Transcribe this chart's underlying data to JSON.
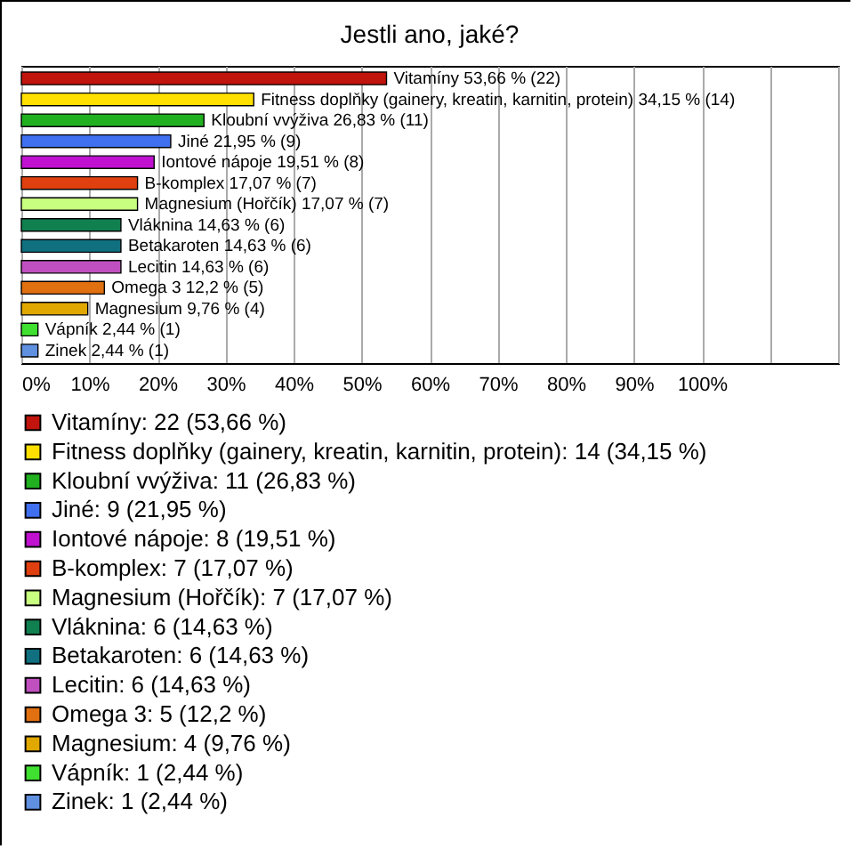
{
  "chart_data": {
    "type": "bar",
    "orientation": "horizontal",
    "stacked": true,
    "title": "Jestli ano, jaké?",
    "categories": [
      null,
      null,
      null,
      null,
      null,
      null,
      null,
      null,
      null,
      null,
      null,
      null,
      null,
      null
    ],
    "series": [
      {
        "name": "Vitamíny: 22 (53,66 %)",
        "color": "#c0140c",
        "values": [
          53.66,
          null,
          null,
          null,
          null,
          null,
          null,
          null,
          null,
          null,
          null,
          null,
          null,
          null
        ],
        "value_labels": [
          "Vitamíny 53,66 % (22)",
          null,
          null,
          null,
          null,
          null,
          null,
          null,
          null,
          null,
          null,
          null,
          null,
          null
        ]
      },
      {
        "name": "Fitness doplňky (gainery, kreatin, karnitin, protein): 14 (34,15 %)",
        "color": "#ffe000",
        "values": [
          null,
          34.15,
          null,
          null,
          null,
          null,
          null,
          null,
          null,
          null,
          null,
          null,
          null,
          null
        ],
        "value_labels": [
          null,
          "Fitness doplňky (gainery, kreatin, karnitin, protein) 34,15 % (14)",
          null,
          null,
          null,
          null,
          null,
          null,
          null,
          null,
          null,
          null,
          null,
          null
        ]
      },
      {
        "name": "Kloubní vvýživa: 11 (26,83 %)",
        "color": "#20b020",
        "values": [
          null,
          null,
          26.83,
          null,
          null,
          null,
          null,
          null,
          null,
          null,
          null,
          null,
          null,
          null
        ],
        "value_labels": [
          null,
          null,
          "Kloubní vvýživa 26,83 % (11)",
          null,
          null,
          null,
          null,
          null,
          null,
          null,
          null,
          null,
          null,
          null
        ]
      },
      {
        "name": "Jiné: 9 (21,95 %)",
        "color": "#4070f0",
        "values": [
          null,
          null,
          null,
          21.95,
          null,
          null,
          null,
          null,
          null,
          null,
          null,
          null,
          null,
          null
        ],
        "value_labels": [
          null,
          null,
          null,
          "Jiné 21,95 % (9)",
          null,
          null,
          null,
          null,
          null,
          null,
          null,
          null,
          null,
          null
        ]
      },
      {
        "name": "Iontové nápoje: 8 (19,51 %)",
        "color": "#c010d0",
        "values": [
          null,
          null,
          null,
          null,
          19.51,
          null,
          null,
          null,
          null,
          null,
          null,
          null,
          null,
          null
        ],
        "value_labels": [
          null,
          null,
          null,
          null,
          "Iontové nápoje 19,51 % (8)",
          null,
          null,
          null,
          null,
          null,
          null,
          null,
          null,
          null
        ]
      },
      {
        "name": "B-komplex: 7 (17,07 %)",
        "color": "#e04010",
        "values": [
          null,
          null,
          null,
          null,
          null,
          17.07,
          null,
          null,
          null,
          null,
          null,
          null,
          null,
          null
        ],
        "value_labels": [
          null,
          null,
          null,
          null,
          null,
          "B-komplex 17,07 % (7)",
          null,
          null,
          null,
          null,
          null,
          null,
          null,
          null
        ]
      },
      {
        "name": "Magnesium (Hořčík): 7 (17,07 %)",
        "color": "#c8ff80",
        "values": [
          null,
          null,
          null,
          null,
          null,
          null,
          17.07,
          null,
          null,
          null,
          null,
          null,
          null,
          null
        ],
        "value_labels": [
          null,
          null,
          null,
          null,
          null,
          null,
          "Magnesium (Hořčík) 17,07 % (7)",
          null,
          null,
          null,
          null,
          null,
          null,
          null
        ]
      },
      {
        "name": "Vláknina: 6 (14,63 %)",
        "color": "#108050",
        "values": [
          null,
          null,
          null,
          null,
          null,
          null,
          null,
          14.63,
          null,
          null,
          null,
          null,
          null,
          null
        ],
        "value_labels": [
          null,
          null,
          null,
          null,
          null,
          null,
          null,
          "Vláknina 14,63 % (6)",
          null,
          null,
          null,
          null,
          null,
          null
        ]
      },
      {
        "name": "Betakaroten: 6 (14,63 %)",
        "color": "#107080",
        "values": [
          null,
          null,
          null,
          null,
          null,
          null,
          null,
          null,
          14.63,
          null,
          null,
          null,
          null,
          null
        ],
        "value_labels": [
          null,
          null,
          null,
          null,
          null,
          null,
          null,
          null,
          "Betakaroten 14,63 % (6)",
          null,
          null,
          null,
          null,
          null
        ]
      },
      {
        "name": "Lecitin: 6 (14,63 %)",
        "color": "#c050c0",
        "values": [
          null,
          null,
          null,
          null,
          null,
          null,
          null,
          null,
          null,
          14.63,
          null,
          null,
          null,
          null
        ],
        "value_labels": [
          null,
          null,
          null,
          null,
          null,
          null,
          null,
          null,
          null,
          "Lecitin 14,63 % (6)",
          null,
          null,
          null,
          null
        ]
      },
      {
        "name": "Omega 3: 5 (12,2 %)",
        "color": "#e07010",
        "values": [
          null,
          null,
          null,
          null,
          null,
          null,
          null,
          null,
          null,
          null,
          12.2,
          null,
          null,
          null
        ],
        "value_labels": [
          null,
          null,
          null,
          null,
          null,
          null,
          null,
          null,
          null,
          null,
          "Omega 3 12,2 % (5)",
          null,
          null,
          null
        ]
      },
      {
        "name": "Magnesium: 4 (9,76 %)",
        "color": "#e0a800",
        "values": [
          null,
          null,
          null,
          null,
          null,
          null,
          null,
          null,
          null,
          null,
          null,
          9.76,
          null,
          null
        ],
        "value_labels": [
          null,
          null,
          null,
          null,
          null,
          null,
          null,
          null,
          null,
          null,
          null,
          "Magnesium 9,76 % (4)",
          null,
          null
        ]
      },
      {
        "name": "Vápník: 1 (2,44 %)",
        "color": "#40e030",
        "values": [
          null,
          null,
          null,
          null,
          null,
          null,
          null,
          null,
          null,
          null,
          null,
          null,
          2.44,
          null
        ],
        "value_labels": [
          null,
          null,
          null,
          null,
          null,
          null,
          null,
          null,
          null,
          null,
          null,
          null,
          "Vápník 2,44 % (1)",
          null
        ]
      },
      {
        "name": "Zinek: 1 (2,44 %)",
        "color": "#6090e0",
        "values": [
          null,
          null,
          null,
          null,
          null,
          null,
          null,
          null,
          null,
          null,
          null,
          null,
          null,
          2.44
        ],
        "value_labels": [
          null,
          null,
          null,
          null,
          null,
          null,
          null,
          null,
          null,
          null,
          null,
          null,
          null,
          "Zinek 2,44 % (1)"
        ]
      }
    ],
    "xlim": [
      0,
      120
    ],
    "xticks": [
      {
        "value": 0,
        "label": "0%"
      },
      {
        "value": 10,
        "label": "10%"
      },
      {
        "value": 20,
        "label": "20%"
      },
      {
        "value": 30,
        "label": "30%"
      },
      {
        "value": 40,
        "label": "40%"
      },
      {
        "value": 50,
        "label": "50%"
      },
      {
        "value": 60,
        "label": "60%"
      },
      {
        "value": 70,
        "label": "70%"
      },
      {
        "value": 80,
        "label": "80%"
      },
      {
        "value": 90,
        "label": "90%"
      },
      {
        "value": 100,
        "label": "100%"
      },
      {
        "value": 110,
        "label": null
      },
      {
        "value": 120,
        "label": null
      }
    ],
    "grid": "x",
    "legend": "bottom",
    "tick_labels": "x"
  }
}
